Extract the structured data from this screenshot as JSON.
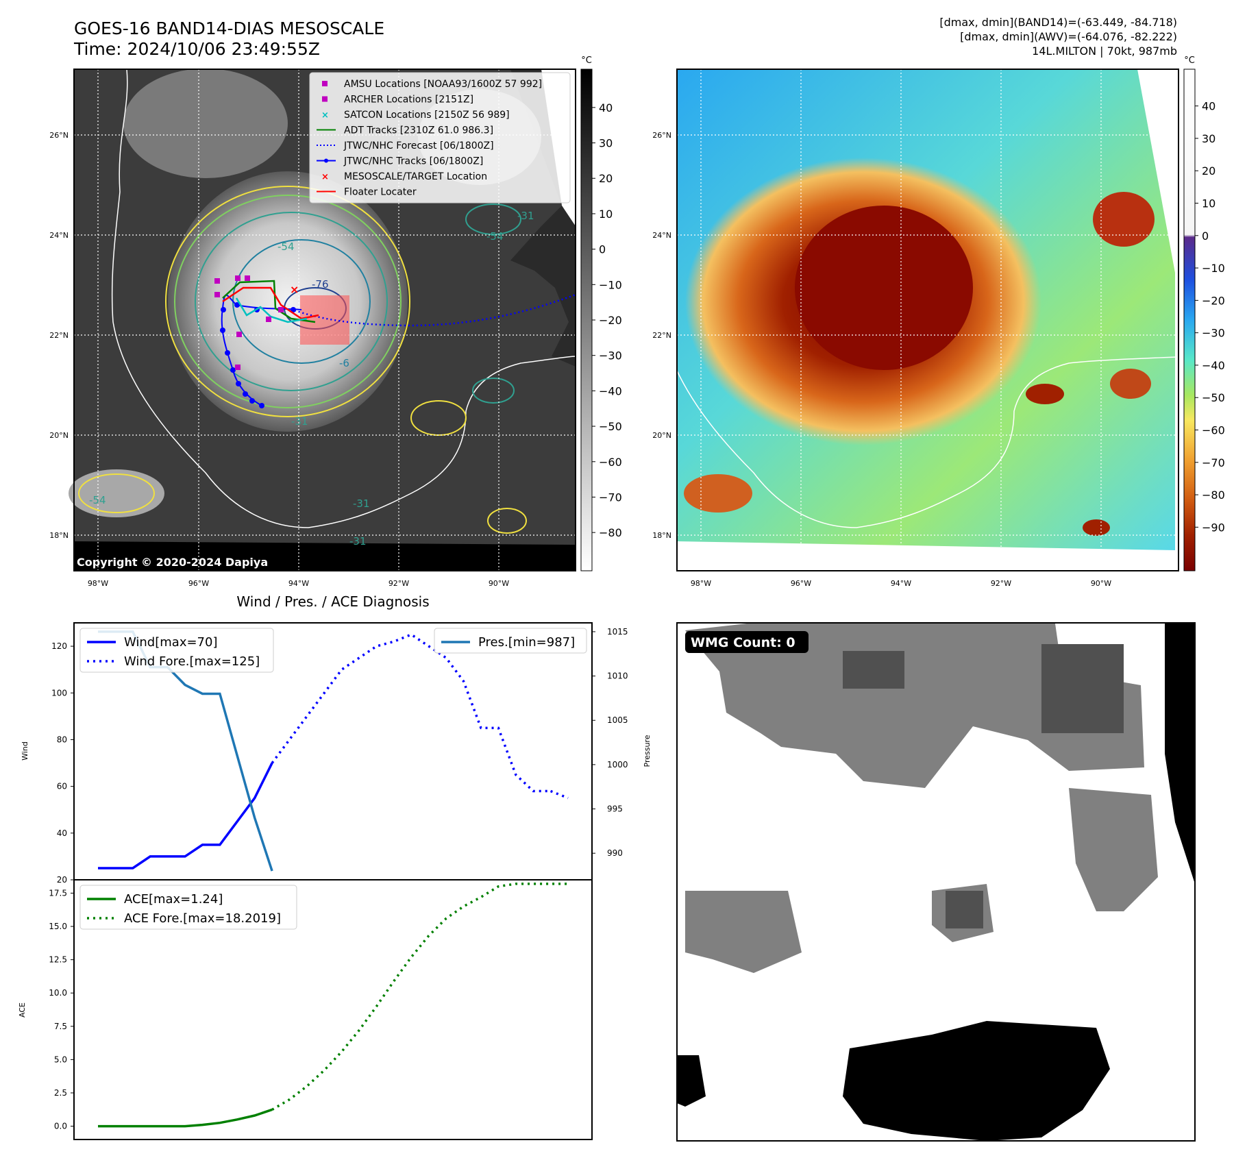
{
  "header": {
    "title_line1": "GOES-16 BAND14-DIAS MESOSCALE",
    "title_line2": "Time: 2024/10/06 23:49:55Z",
    "info_line1": "[dmax, dmin](BAND14)=(-63.449, -84.718)",
    "info_line2": "[dmax, dmin](AWV)=(-64.076, -82.222)",
    "info_line3": "14L.MILTON | 70kt, 987mb"
  },
  "map_axes": {
    "lat_labels": [
      "26°N",
      "24°N",
      "22°N",
      "20°N",
      "18°N"
    ],
    "lon_labels": [
      "98°W",
      "96°W",
      "94°W",
      "92°W",
      "90°W"
    ]
  },
  "colorbar_gray": {
    "unit": "°C",
    "ticks": [
      "40",
      "30",
      "20",
      "10",
      "0",
      "−10",
      "−20",
      "−30",
      "−40",
      "−50",
      "−60",
      "−70",
      "−80"
    ]
  },
  "colorbar_color": {
    "unit": "°C",
    "ticks": [
      "40",
      "30",
      "20",
      "10",
      "0",
      "−10",
      "−20",
      "−30",
      "−40",
      "−50",
      "−60",
      "−70",
      "−80",
      "−90"
    ]
  },
  "map_legend": [
    {
      "label": "AMSU Locations [NOAA93/1600Z 57 992]",
      "marker": "square",
      "color": "#c000c0"
    },
    {
      "label": "ARCHER Locations [2151Z]",
      "marker": "square",
      "color": "#c000c0"
    },
    {
      "label": "SATCON Locations [2150Z 56 989]",
      "marker": "x",
      "color": "#00c0c0"
    },
    {
      "label": "ADT Tracks [2310Z 61.0 986.3]",
      "marker": "line",
      "color": "#008000"
    },
    {
      "label": "JTWC/NHC Forecast [06/1800Z]",
      "marker": "dotted",
      "color": "#0000ff"
    },
    {
      "label": "JTWC/NHC Tracks [06/1800Z]",
      "marker": "line-dot",
      "color": "#0000ff"
    },
    {
      "label": "MESOSCALE/TARGET Location",
      "marker": "x",
      "color": "#ff0000"
    },
    {
      "label": "Floater Locater",
      "marker": "line",
      "color": "#ff0000"
    }
  ],
  "contour_labels": [
    "-54",
    "-76",
    "-6",
    "-31",
    "-54",
    "-54",
    "-31",
    "-31",
    "-31"
  ],
  "copyright": "Copyright © 2020-2024 Dapiya",
  "wmg": {
    "label": "WMG Count: 0"
  },
  "chart_data": [
    {
      "type": "line",
      "title": "Wind / Pres. / ACE Diagnosis",
      "ylabel": "Wind",
      "y2label": "Pressure",
      "ylim": [
        20,
        130
      ],
      "y2lim": [
        987,
        1016
      ],
      "y_ticks": [
        "120",
        "100",
        "80",
        "60",
        "40",
        "20"
      ],
      "y2_ticks": [
        "1015",
        "1010",
        "1005",
        "1000",
        "995",
        "990"
      ],
      "x_count": 27,
      "series": [
        {
          "name": "Wind[max=70]",
          "axis": "left",
          "style": "solid",
          "color": "#0000ff",
          "x": [
            0,
            1,
            2,
            3,
            4,
            5,
            6,
            7,
            8,
            9,
            10
          ],
          "values": [
            25,
            25,
            25,
            30,
            30,
            30,
            35,
            35,
            45,
            55,
            70
          ]
        },
        {
          "name": "Wind Fore.[max=125]",
          "axis": "left",
          "style": "dotted",
          "color": "#0000ff",
          "x": [
            10,
            11,
            12,
            13,
            14,
            15,
            16,
            17,
            18,
            19,
            20,
            21,
            22,
            23,
            24,
            25,
            26
          ],
          "values": [
            70,
            80,
            90,
            100,
            110,
            115,
            120,
            122,
            125,
            120,
            115,
            105,
            85,
            85,
            65,
            58,
            58
          ]
        },
        {
          "name": "Wind Fore. tail",
          "axis": "left",
          "style": "dotted",
          "color": "#0000ff",
          "legend": false,
          "x": [
            26,
            27
          ],
          "values": [
            58,
            55
          ]
        },
        {
          "name": "Pres.[min=987]",
          "axis": "right",
          "style": "solid",
          "color": "#1f77b4",
          "x": [
            0,
            1,
            2,
            3,
            4,
            5,
            6,
            7,
            8,
            9,
            10
          ],
          "values": [
            1015,
            1015,
            1015,
            1011,
            1011,
            1009,
            1008,
            1008,
            1001,
            994,
            988
          ]
        }
      ]
    },
    {
      "type": "line",
      "ylabel": "ACE",
      "ylim": [
        -1,
        18.5
      ],
      "y_ticks": [
        "17.5",
        "15.0",
        "12.5",
        "10.0",
        "7.5",
        "5.0",
        "2.5",
        "0.0"
      ],
      "series": [
        {
          "name": "ACE[max=1.24]",
          "style": "solid",
          "color": "#008000",
          "x": [
            0,
            1,
            2,
            3,
            4,
            5,
            6,
            7,
            8,
            9,
            10
          ],
          "values": [
            0,
            0,
            0,
            0,
            0,
            0,
            0.1,
            0.25,
            0.5,
            0.8,
            1.24
          ]
        },
        {
          "name": "ACE Fore.[max=18.2019]",
          "style": "dotted",
          "color": "#008000",
          "x": [
            10,
            11,
            12,
            13,
            14,
            15,
            16,
            17,
            18,
            19,
            20,
            21,
            22,
            23,
            24,
            25,
            26,
            27
          ],
          "values": [
            1.24,
            2.0,
            3.0,
            4.2,
            5.6,
            7.2,
            9.0,
            10.9,
            12.7,
            14.3,
            15.6,
            16.5,
            17.2,
            18.0,
            18.2,
            18.2,
            18.2,
            18.2
          ]
        }
      ]
    }
  ]
}
